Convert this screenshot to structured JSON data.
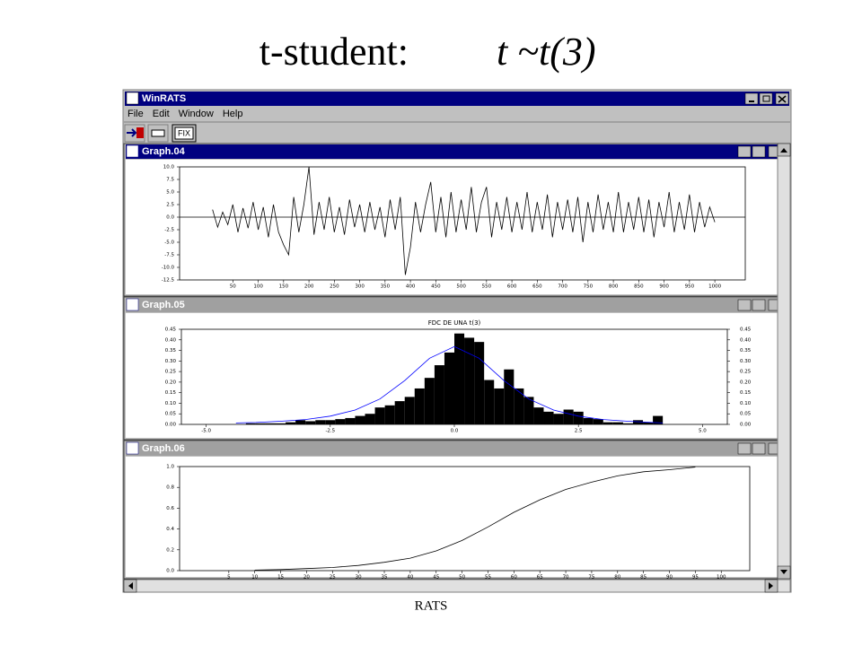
{
  "slide": {
    "title": "t-student:",
    "formula": "t ~t(3)",
    "footer": "RATS"
  },
  "window": {
    "title": "WinRATS",
    "menu": [
      "File",
      "Edit",
      "Window",
      "Help"
    ],
    "toolbar_button": "FIX",
    "graph_titles": [
      "Graph.04",
      "Graph.05",
      "Graph.06"
    ]
  },
  "chart_data": [
    {
      "type": "line",
      "color": "#000000",
      "x": [
        10,
        20,
        30,
        40,
        50,
        60,
        70,
        80,
        90,
        100,
        110,
        120,
        130,
        140,
        150,
        160,
        170,
        180,
        190,
        200,
        210,
        220,
        230,
        240,
        250,
        260,
        270,
        280,
        290,
        300,
        310,
        320,
        330,
        340,
        350,
        360,
        370,
        380,
        390,
        400,
        410,
        420,
        430,
        440,
        450,
        460,
        470,
        480,
        490,
        500,
        510,
        520,
        530,
        540,
        550,
        560,
        570,
        580,
        590,
        600,
        610,
        620,
        630,
        640,
        650,
        660,
        670,
        680,
        690,
        700,
        710,
        720,
        730,
        740,
        750,
        760,
        770,
        780,
        790,
        800,
        810,
        820,
        830,
        840,
        850,
        860,
        870,
        880,
        890,
        900,
        910,
        920,
        930,
        940,
        950,
        960,
        970,
        980,
        990,
        1000
      ],
      "values": [
        1.5,
        -2,
        1,
        -1.5,
        2.5,
        -3,
        1.8,
        -2.2,
        3,
        -2.5,
        2,
        -4,
        2.5,
        -3,
        -5.5,
        -7.5,
        4,
        -3,
        2.5,
        10,
        -3.5,
        3,
        -2.5,
        4,
        -3,
        2,
        -3.5,
        3.5,
        -2,
        2.5,
        -3,
        3,
        -2.5,
        2,
        -4,
        3.5,
        -2.5,
        4,
        -11.5,
        -6,
        3,
        -3,
        2.5,
        7,
        -3,
        4,
        -4,
        5,
        -3,
        3.5,
        -2.5,
        6,
        -3,
        3,
        6,
        -4,
        3,
        -2.5,
        4,
        -3,
        3,
        -2.5,
        5,
        -3,
        3,
        -2.5,
        4.5,
        -4,
        3,
        -2.5,
        3.5,
        -3,
        4,
        -5,
        3,
        -3,
        4.5,
        -2.5,
        3,
        -3,
        5,
        -3,
        3,
        -2.5,
        4,
        -3,
        3.5,
        -4,
        3,
        -2,
        5,
        -3,
        3,
        -2.5,
        4.5,
        -3,
        3,
        -2,
        2,
        -1
      ],
      "xlim": [
        -55,
        1060
      ],
      "xticks": [
        50,
        100,
        150,
        200,
        250,
        300,
        350,
        400,
        450,
        500,
        550,
        600,
        650,
        700,
        750,
        800,
        850,
        900,
        950,
        1000
      ],
      "ylim": [
        -12.5,
        10
      ],
      "yticks": [
        {
          "value": 10,
          "label": "10.0"
        },
        7.5,
        {
          "value": 5,
          "label": "5.0"
        },
        2.5,
        {
          "value": 0,
          "label": "0.0"
        },
        -2.5,
        {
          "value": -5,
          "label": "-5.0"
        },
        -7.5,
        {
          "value": -10,
          "label": "-10.0"
        },
        -12.5
      ]
    },
    {
      "type": "histogram",
      "title": "FDC DE UNA t(3)",
      "color": "#000000",
      "bins": [
        -4.4,
        -4.2,
        -4.0,
        -3.8,
        -3.6,
        -3.4,
        -3.2,
        -3.0,
        -2.8,
        -2.6,
        -2.4,
        -2.2,
        -2.0,
        -1.8,
        -1.6,
        -1.4,
        -1.2,
        -1.0,
        -0.8,
        -0.6,
        -0.4,
        -0.2,
        0.0,
        0.2,
        0.4,
        0.6,
        0.8,
        1.0,
        1.2,
        1.4,
        1.6,
        1.8,
        2.0,
        2.2,
        2.4,
        2.6,
        2.8,
        3.0,
        3.2,
        3.4,
        3.6,
        3.8,
        4.0,
        4.2
      ],
      "values": [
        0.0,
        0.005,
        0.005,
        0.005,
        0.005,
        0.01,
        0.02,
        0.015,
        0.02,
        0.02,
        0.025,
        0.03,
        0.04,
        0.05,
        0.08,
        0.09,
        0.11,
        0.13,
        0.17,
        0.22,
        0.28,
        0.34,
        0.43,
        0.41,
        0.39,
        0.21,
        0.17,
        0.26,
        0.17,
        0.13,
        0.08,
        0.06,
        0.05,
        0.07,
        0.06,
        0.03,
        0.025,
        0.01,
        0.01,
        0.005,
        0.02,
        0.01,
        0.04
      ],
      "line": {
        "color": "#0000ff",
        "x": [
          -4.4,
          -4,
          -3.5,
          -3,
          -2.5,
          -2,
          -1.5,
          -1,
          -0.5,
          0,
          0.5,
          1,
          1.5,
          2,
          2.5,
          3,
          3.5,
          4,
          4.2
        ],
        "values": [
          0.007,
          0.009,
          0.015,
          0.023,
          0.039,
          0.068,
          0.12,
          0.207,
          0.313,
          0.368,
          0.313,
          0.207,
          0.12,
          0.068,
          0.039,
          0.023,
          0.015,
          0.009,
          0.007
        ]
      },
      "xlim": [
        -5.5,
        5.5
      ],
      "xticks": [
        {
          "value": -5,
          "label": "-5.0"
        },
        -2.5,
        {
          "value": 0,
          "label": "0.0"
        },
        2.5,
        {
          "value": 5,
          "label": "5.0"
        }
      ],
      "ylim": [
        0,
        0.45
      ],
      "yticks": [
        {
          "value": 0,
          "label": "0.00"
        },
        0.05,
        {
          "value": 0.1,
          "label": "0.10"
        },
        0.15,
        {
          "value": 0.2,
          "label": "0.20"
        },
        0.25,
        {
          "value": 0.3,
          "label": "0.30"
        },
        0.35,
        {
          "value": 0.4,
          "label": "0.40"
        },
        0.45
      ],
      "y2lim": [
        0,
        0.45
      ],
      "y2ticks": [
        {
          "value": 0,
          "label": "0.00"
        },
        0.05,
        {
          "value": 0.1,
          "label": "0.10"
        },
        0.15,
        {
          "value": 0.2,
          "label": "0.20"
        },
        0.25,
        {
          "value": 0.3,
          "label": "0.30"
        },
        0.35,
        {
          "value": 0.4,
          "label": "0.40"
        },
        0.45
      ]
    },
    {
      "type": "line",
      "color": "#000000",
      "x": [
        10,
        15,
        20,
        25,
        30,
        35,
        40,
        45,
        50,
        55,
        60,
        65,
        70,
        75,
        80,
        85,
        90,
        95
      ],
      "values": [
        0.005,
        0.01,
        0.02,
        0.03,
        0.05,
        0.08,
        0.12,
        0.19,
        0.29,
        0.42,
        0.56,
        0.68,
        0.78,
        0.85,
        0.91,
        0.95,
        0.97,
        0.995
      ],
      "xlim": [
        -4.5,
        105.5
      ],
      "xticks": [
        5,
        10,
        15,
        20,
        25,
        30,
        35,
        40,
        45,
        50,
        55,
        60,
        65,
        70,
        75,
        80,
        85,
        90,
        95,
        100
      ],
      "ylim": [
        0,
        1
      ],
      "yticks": [
        {
          "value": 0,
          "label": "0.0"
        },
        0.2,
        0.4,
        0.6,
        0.8,
        {
          "value": 1,
          "label": "1.0"
        }
      ]
    }
  ]
}
